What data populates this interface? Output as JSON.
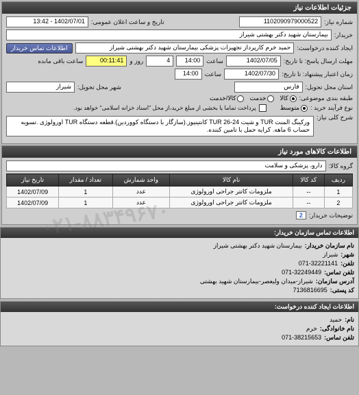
{
  "panel1": {
    "title": "جزئیات اطلاعات نیاز",
    "reqnum_label": "شماره نیاز:",
    "reqnum": "1102090979000522",
    "pubdate_label": "تاریخ و ساعت اعلان عمومی:",
    "pubdate": "1402/07/01 - 13:42",
    "buyer_label": "خریدار:",
    "buyer": "بیمارستان شهید دکتر بهشتی شیراز",
    "creator_label": "ایجاد کننده درخواست:",
    "creator": "حمید خرم کارپرداز تجهیزات پزشکی بیمارستان شهید دکتر بهشتی شیراز",
    "contact_btn": "اطلاعات تماس خریدار",
    "deadline_label": "مهلت ارسال پاسخ: تا تاریخ:",
    "deadline_time_label": "ساعت",
    "deadline_date": "1402/07/05",
    "deadline_time": "14:00",
    "days_remain": "4",
    "days_label": "روز و",
    "time_remain": "00:11:41",
    "remain_label": "ساعت باقی مانده",
    "validity_label": "زمان اعتبار پیشنهاد: تا تاریخ:",
    "validity_date": "1402/07/30",
    "validity_time": "14:00",
    "province_label": "استان محل تحویل:",
    "province": "فارس",
    "city_label": "شهر محل تحویل:",
    "city": "شیراز",
    "budget_label": "طبقه بندی موضوعی:",
    "budget_opts": [
      "کالا",
      "خدمت",
      "کالا/خدمت"
    ],
    "severity_label": "نوع فرآیند خرید :",
    "severity_opts": [
      "متوسط"
    ],
    "payment_note": "پرداخت تماما یا بخشی از مبلغ خرید،از محل \"اسناد خزانه اسلامی\" خواهد بود.",
    "payment_checkbox_label": "",
    "desc_label": "شرح کلی نیاز:",
    "desc": "ورکینگ المنت TUR و شیت 24-26 TUR کانتینیوز.(سازگار با دستگاه کووردین).قطعه دستگاه TUR اورولوژی .تسویه حساب 6 ماهه. کرایه حمل با تامین کننده."
  },
  "panel2": {
    "title": "اطلاعات کالاهای مورد نیاز",
    "group_label": "گروه کالا:",
    "group": "دارو، پزشکی و سلامت",
    "cols": [
      "ردیف",
      "کد کالا",
      "نام کالا",
      "واحد شمارش",
      "تعداد / مقدار",
      "تاریخ نیاز"
    ],
    "rows": [
      [
        "1",
        "--",
        "ملزومات کاتتر جراحی اورولوژی",
        "عدد",
        "1",
        "1402/07/09"
      ],
      [
        "2",
        "--",
        "ملزومات کاتتر جراحی اورولوژی",
        "عدد",
        "1",
        "1402/07/09"
      ]
    ],
    "buyer_notes_label": "توضیحات خریدار:",
    "buyer_notes_count": "2"
  },
  "panel3": {
    "title": "اطلاعات تماس سازمان خریدار:",
    "lines": [
      [
        "نام سازمان خریدار:",
        "بیمارستان شهید دکتر بهشتی شیراز"
      ],
      [
        "شهر:",
        "شیراز"
      ],
      [
        "تلفن:",
        "071-32221141"
      ],
      [
        "تلفن تماس:",
        "071-32249449"
      ],
      [
        "آدرس سازمان:",
        "شیراز-میدان ولیعصر-بیمارستان شهید بهشتی"
      ],
      [
        "کد پستی:",
        "7136816695"
      ]
    ]
  },
  "panel4": {
    "title": "اطلاعات ایجاد کننده درخواست:",
    "lines": [
      [
        "نام:",
        "حمید"
      ],
      [
        "نام خانوادگی:",
        "خرم"
      ],
      [
        "تلفن تماس:",
        "071-38215653"
      ]
    ]
  },
  "watermark": "۰۲۱-۸۸۳۴۹۶۷۰"
}
